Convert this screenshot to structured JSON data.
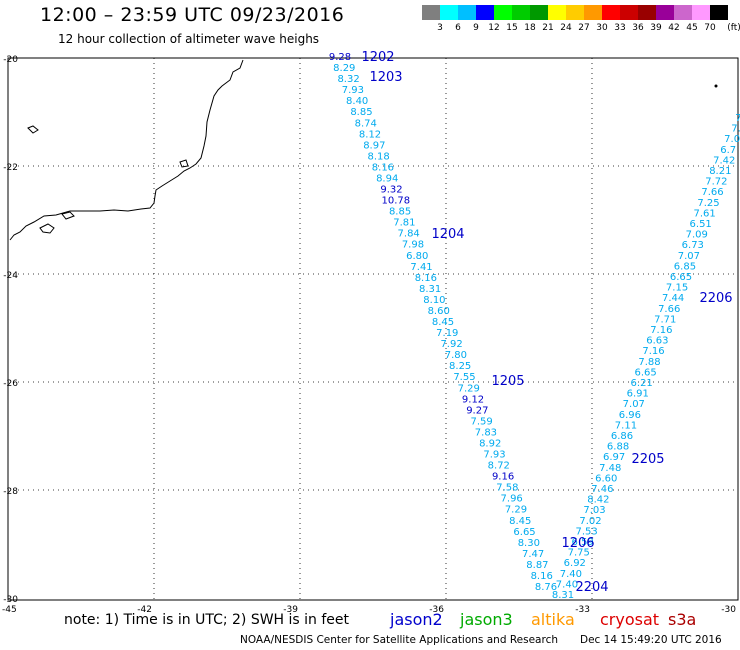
{
  "title": "12:00 – 23:59 UTC 09/23/2016",
  "subtitle": "12 hour collection of altimeter wave heighs",
  "legend": {
    "unit": "(ft)",
    "bins": [
      {
        "label": "3",
        "color": "#7f7f7f"
      },
      {
        "label": "6",
        "color": "#00ffff"
      },
      {
        "label": "9",
        "color": "#00bfff"
      },
      {
        "label": "12",
        "color": "#0000ff"
      },
      {
        "label": "15",
        "color": "#00ff00"
      },
      {
        "label": "18",
        "color": "#00cc00"
      },
      {
        "label": "21",
        "color": "#009900"
      },
      {
        "label": "24",
        "color": "#ffff00"
      },
      {
        "label": "27",
        "color": "#ffcc00"
      },
      {
        "label": "30",
        "color": "#ff9900"
      },
      {
        "label": "33",
        "color": "#ff0000"
      },
      {
        "label": "36",
        "color": "#cc0000"
      },
      {
        "label": "39",
        "color": "#990000"
      },
      {
        "label": "42",
        "color": "#990099"
      },
      {
        "label": "45",
        "color": "#cc66cc"
      },
      {
        "label": "70",
        "color": "#ff99ff"
      },
      {
        "label": "",
        "color": "#000000"
      }
    ]
  },
  "axes": {
    "lon_ticks": [
      "-45",
      "-42",
      "-39",
      "-36",
      "-33",
      "-30"
    ],
    "lat_ticks": [
      "-20",
      "-22",
      "-24",
      "-26",
      "-28",
      "-30"
    ]
  },
  "track_a": {
    "color": "#00aaee",
    "dark_color": "#0000c8",
    "values": [
      "9.28",
      "8.29",
      "8.32",
      "7.93",
      "8.40",
      "8.85",
      "8.74",
      "8.12",
      "8.97",
      "8.18",
      "8.16",
      "8.94",
      "9.32",
      "10.78",
      "8.85",
      "7.81",
      "7.84",
      "7.98",
      "6.80",
      "7.41",
      "8.16",
      "8.31",
      "8.10",
      "8.60",
      "8.45",
      "7.19",
      "7.92",
      "7.80",
      "8.25",
      "7.55",
      "7.29",
      "9.12",
      "9.27",
      "7.59",
      "7.83",
      "8.92",
      "7.93",
      "8.72",
      "9.16",
      "7.58",
      "7.96",
      "7.29",
      "8.45",
      "6.65",
      "8.30",
      "7.47",
      "8.87",
      "8.16",
      "8.76"
    ],
    "dark_values": [
      "9.28",
      "9.32",
      "10.78",
      "9.12",
      "9.27",
      "9.16"
    ]
  },
  "track_b": {
    "color": "#00aaee",
    "values": [
      "7.",
      "7.",
      "7.0",
      "6.7",
      "7.42",
      "8.21",
      "7.72",
      "7.66",
      "7.25",
      "7.61",
      "6.51",
      "7.09",
      "6.73",
      "7.07",
      "6.85",
      "6.65",
      "7.15",
      "7.44",
      "7.66",
      "7.71",
      "7.16",
      "6.63",
      "7.16",
      "7.88",
      "6.65",
      "6.21",
      "6.91",
      "7.07",
      "6.96",
      "7.11",
      "6.86",
      "6.88",
      "6.97",
      "7.48",
      "6.60",
      "7.46",
      "8.42",
      "7.03",
      "7.02",
      "7.53",
      "6.59",
      "7.75",
      "6.92",
      "7.40",
      "7.40",
      "8.31"
    ]
  },
  "pass_labels": [
    "1202",
    "1203",
    "1204",
    "1205",
    "1206",
    "2204",
    "2205",
    "2206"
  ],
  "note": "note: 1) Time is in UTC; 2) SWH is in feet",
  "satellites": [
    {
      "name": "jason2",
      "color": "#0000cc"
    },
    {
      "name": "jason3",
      "color": "#00aa00"
    },
    {
      "name": "altika",
      "color": "#ff9900"
    },
    {
      "name": "cryosat",
      "color": "#dd0000"
    },
    {
      "name": "s3a",
      "color": "#aa0000"
    }
  ],
  "footer_left": "NOAA/NESDIS Center for Satellite Applications and Research",
  "footer_right": "Dec 14 15:49:20 UTC 2016"
}
